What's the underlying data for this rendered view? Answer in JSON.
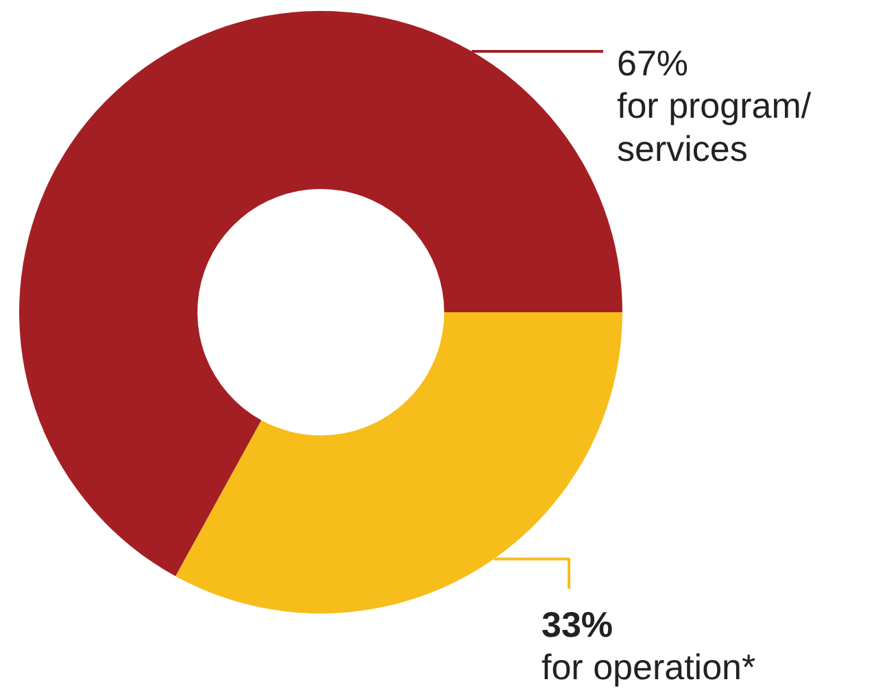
{
  "chart_data": {
    "type": "donut",
    "categories": [
      "for operation*",
      "for program/ services"
    ],
    "values": [
      33,
      67
    ],
    "colors": [
      "#f6bd1b",
      "#a41f23"
    ],
    "value_labels": [
      "33%",
      "67%"
    ]
  }
}
